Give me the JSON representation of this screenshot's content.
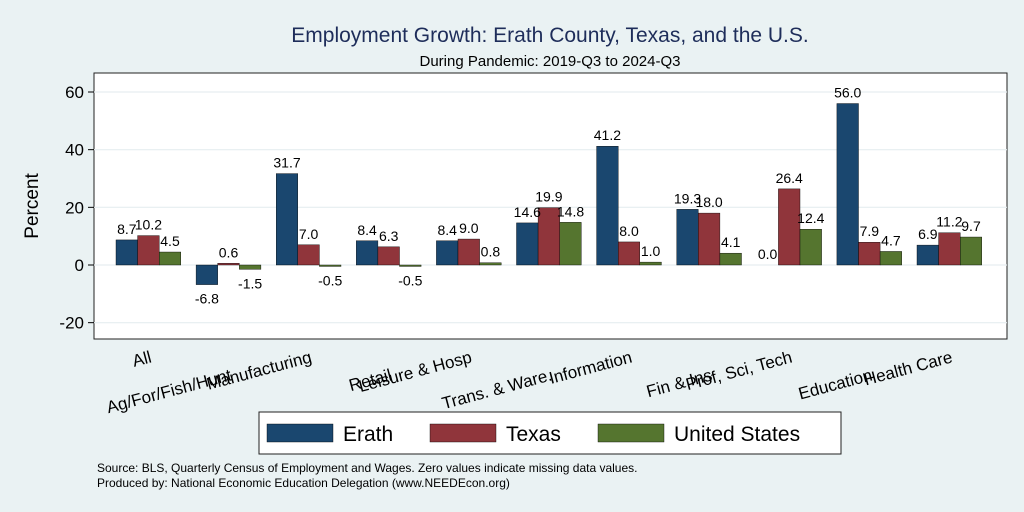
{
  "chart_data": {
    "type": "bar",
    "title": "Employment Growth: Erath County, Texas, and the U.S.",
    "subtitle": "During Pandemic: 2019-Q3 to 2024-Q3",
    "xlabel": "",
    "ylabel": "Percent",
    "ylim": [
      -25,
      66
    ],
    "yticks": [
      -20,
      0,
      20,
      40,
      60
    ],
    "ytick_labels": [
      "-20",
      "0",
      "20",
      "40",
      "60"
    ],
    "grid": true,
    "categories": [
      "All",
      "Ag/For/Fish/Hunt",
      "Manufacturing",
      "Retail",
      "Leisure & Hosp",
      "Trans. & Ware.",
      "Information",
      "Fin & Ins",
      "Prof, Sci, Tech",
      "Education",
      "Health Care"
    ],
    "series": [
      {
        "name": "Erath",
        "color": "#1a476f",
        "values": [
          8.7,
          -6.8,
          31.7,
          8.4,
          8.4,
          14.6,
          41.2,
          19.3,
          0.0,
          56.0,
          6.9
        ],
        "labels": [
          "8.7",
          "-6.8",
          "31.7",
          "8.4",
          "8.4",
          "14.6",
          "41.2",
          "19.3",
          "0.0",
          "56.0",
          "6.9"
        ]
      },
      {
        "name": "Texas",
        "color": "#90353b",
        "values": [
          10.2,
          0.6,
          7.0,
          6.3,
          9.0,
          19.9,
          8.0,
          18.0,
          26.4,
          7.9,
          11.2
        ],
        "labels": [
          "10.2",
          "0.6",
          "7.0",
          "6.3",
          "9.0",
          "19.9",
          "8.0",
          "18.0",
          "26.4",
          "7.9",
          "11.2"
        ]
      },
      {
        "name": "United States",
        "color": "#55752f",
        "values": [
          4.5,
          -1.5,
          -0.5,
          -0.5,
          0.8,
          14.8,
          1.0,
          4.1,
          12.4,
          4.7,
          9.7
        ],
        "labels": [
          "4.5",
          "-1.5",
          "-0.5",
          "-0.5",
          "0.8",
          "14.8",
          "1.0",
          "4.1",
          "12.4",
          "4.7",
          "9.7"
        ]
      }
    ],
    "legend_position": "bottom",
    "notes": [
      "Source: BLS, Quarterly Census of Employment and Wages. Zero values indicate missing data values.",
      "Produced by: National Economic Education Delegation (www.NEEDEcon.org)"
    ]
  }
}
